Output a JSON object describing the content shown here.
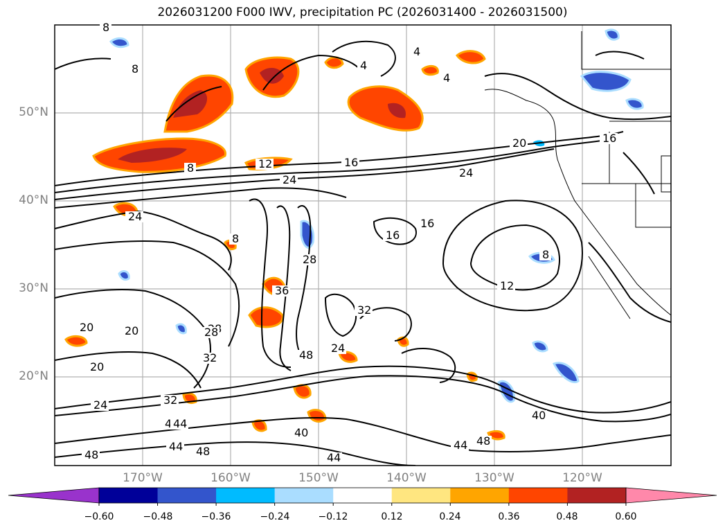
{
  "title": "2026031200 F000 IWV, precipitation PC (2026031400 - 2026031500)",
  "lat_labels": [
    "50°N",
    "40°N",
    "30°N",
    "20°N"
  ],
  "lon_labels": [
    "170°W",
    "160°W",
    "150°W",
    "140°W",
    "130°W",
    "120°W"
  ],
  "colorbar": {
    "ticks": [
      "−0.60",
      "−0.48",
      "−0.36",
      "−0.24",
      "−0.12",
      "0.12",
      "0.24",
      "0.36",
      "0.48",
      "0.60"
    ],
    "colors": [
      "#9933cc",
      "#000099",
      "#3355cc",
      "#00bbff",
      "#aaddff",
      "#ffffff",
      "#ffe680",
      "#ffa500",
      "#ff4500",
      "#b22222",
      "#ff88aa"
    ]
  },
  "contour_labels": [
    "8",
    "4",
    "4",
    "8",
    "4",
    "8",
    "12",
    "16",
    "20",
    "16",
    "24",
    "24",
    "16",
    "16",
    "24",
    "8",
    "28",
    "36",
    "12",
    "32",
    "28",
    "20",
    "20",
    "20",
    "28",
    "32",
    "48",
    "24",
    "24",
    "32",
    "48",
    "44",
    "40",
    "44",
    "48",
    "44",
    "48",
    "40",
    "44",
    "48",
    "8"
  ],
  "colors": {
    "contour": "#000000",
    "grid": "#b0b0b0",
    "coast": "#000000",
    "precip_orange": "#ff4500",
    "precip_red": "#b22222",
    "precip_yellow": "#ffa500",
    "precip_blue": "#3355cc",
    "precip_lightblue": "#00bbff"
  }
}
